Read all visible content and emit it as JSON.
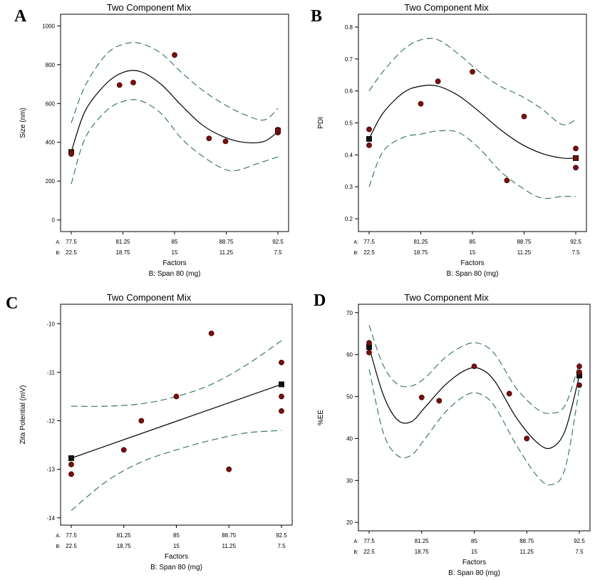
{
  "figure": {
    "marker_color": "#7a0f0f",
    "line_color": "#000000",
    "ci_color": "#3d7a6a"
  },
  "chart_data": [
    {
      "panel": "A",
      "type": "scatter",
      "title": "Two Component Mix",
      "ylabel": "Size (nm)",
      "xlabel": "Factors",
      "xlabel2": "B: Span 80 (mg)",
      "row_a_label": "A:",
      "row_b_label": "B:",
      "x_ticks_a": [
        "77.5",
        "81.25",
        "85",
        "88.75",
        "92.5"
      ],
      "x_ticks_b": [
        "22.5",
        "18.75",
        "15",
        "11.25",
        "7.5"
      ],
      "xlim": [
        77.5,
        92.5
      ],
      "ylim": [
        -60,
        1060
      ],
      "y_ticks": [
        0,
        200,
        400,
        600,
        800,
        1000
      ],
      "points": [
        [
          77.5,
          350
        ],
        [
          77.5,
          340
        ],
        [
          81.0,
          695
        ],
        [
          82.0,
          708
        ],
        [
          85.0,
          850
        ],
        [
          87.5,
          420
        ],
        [
          88.7,
          405
        ],
        [
          92.5,
          450
        ],
        [
          92.5,
          465
        ],
        [
          92.5,
          460
        ]
      ],
      "design_points": [
        [
          77.5,
          350
        ],
        [
          92.5,
          460
        ]
      ],
      "fit": [
        [
          77.5,
          350
        ],
        [
          78.5,
          560
        ],
        [
          80.0,
          700
        ],
        [
          81.25,
          760
        ],
        [
          82.5,
          765
        ],
        [
          84.0,
          700
        ],
        [
          85.5,
          590
        ],
        [
          87.0,
          490
        ],
        [
          88.5,
          430
        ],
        [
          90.0,
          400
        ],
        [
          91.5,
          405
        ],
        [
          92.5,
          455
        ]
      ],
      "ci_upper": [
        [
          77.5,
          500
        ],
        [
          78.5,
          690
        ],
        [
          80.0,
          850
        ],
        [
          81.25,
          905
        ],
        [
          82.5,
          910
        ],
        [
          84.0,
          860
        ],
        [
          85.5,
          760
        ],
        [
          87.0,
          670
        ],
        [
          88.5,
          600
        ],
        [
          90.0,
          545
        ],
        [
          91.5,
          515
        ],
        [
          92.5,
          575
        ]
      ],
      "ci_lower": [
        [
          77.5,
          185
        ],
        [
          78.5,
          420
        ],
        [
          80.0,
          560
        ],
        [
          81.25,
          610
        ],
        [
          82.5,
          615
        ],
        [
          84.0,
          550
        ],
        [
          85.5,
          420
        ],
        [
          87.0,
          330
        ],
        [
          88.5,
          265
        ],
        [
          89.5,
          255
        ],
        [
          91.0,
          290
        ],
        [
          92.5,
          325
        ]
      ]
    },
    {
      "panel": "B",
      "type": "scatter",
      "title": "Two Component Mix",
      "ylabel": "PDI",
      "xlabel": "Factors",
      "xlabel2": "B: Span 80 (mg)",
      "row_a_label": "A:",
      "row_b_label": "B:",
      "x_ticks_a": [
        "77.5",
        "81.25",
        "85",
        "88.75",
        "92.5"
      ],
      "x_ticks_b": [
        "22.5",
        "18.75",
        "15",
        "11.25",
        "7.5"
      ],
      "xlim": [
        77.5,
        92.5
      ],
      "ylim": [
        0.16,
        0.84
      ],
      "y_ticks": [
        0.2,
        0.3,
        0.4,
        0.5,
        0.6,
        0.7,
        0.8
      ],
      "points": [
        [
          77.5,
          0.48
        ],
        [
          77.5,
          0.43
        ],
        [
          81.25,
          0.56
        ],
        [
          82.5,
          0.63
        ],
        [
          85.0,
          0.66
        ],
        [
          87.5,
          0.32
        ],
        [
          88.75,
          0.52
        ],
        [
          92.5,
          0.42
        ],
        [
          92.5,
          0.39
        ],
        [
          92.5,
          0.36
        ]
      ],
      "design_points": [
        [
          77.5,
          0.45
        ],
        [
          92.5,
          0.39
        ]
      ],
      "fit": [
        [
          77.5,
          0.45
        ],
        [
          78.5,
          0.53
        ],
        [
          80.0,
          0.595
        ],
        [
          81.25,
          0.615
        ],
        [
          82.5,
          0.615
        ],
        [
          84.0,
          0.585
        ],
        [
          85.5,
          0.535
        ],
        [
          87.0,
          0.48
        ],
        [
          88.5,
          0.435
        ],
        [
          90.0,
          0.405
        ],
        [
          91.5,
          0.39
        ],
        [
          92.5,
          0.39
        ]
      ],
      "ci_upper": [
        [
          77.5,
          0.6
        ],
        [
          78.5,
          0.66
        ],
        [
          80.0,
          0.73
        ],
        [
          81.25,
          0.76
        ],
        [
          82.5,
          0.76
        ],
        [
          84.0,
          0.715
        ],
        [
          85.5,
          0.66
        ],
        [
          87.0,
          0.615
        ],
        [
          88.5,
          0.585
        ],
        [
          90.0,
          0.545
        ],
        [
          91.5,
          0.495
        ],
        [
          92.5,
          0.51
        ]
      ],
      "ci_lower": [
        [
          77.5,
          0.3
        ],
        [
          78.5,
          0.41
        ],
        [
          80.0,
          0.455
        ],
        [
          81.25,
          0.465
        ],
        [
          82.5,
          0.475
        ],
        [
          84.0,
          0.47
        ],
        [
          85.5,
          0.42
        ],
        [
          87.0,
          0.35
        ],
        [
          88.5,
          0.3
        ],
        [
          90.0,
          0.265
        ],
        [
          91.5,
          0.27
        ],
        [
          92.5,
          0.27
        ]
      ]
    },
    {
      "panel": "C",
      "type": "scatter",
      "title": "Two Component Mix",
      "ylabel": "Zita Potential (mV)",
      "xlabel": "Factors",
      "xlabel2": "B: Span 80 (mg)",
      "row_a_label": "A:",
      "row_b_label": "B:",
      "x_ticks_a": [
        "77.5",
        "81.25",
        "85",
        "88.75",
        "92.5"
      ],
      "x_ticks_b": [
        "22.5",
        "18.75",
        "15",
        "11.25",
        "7.5"
      ],
      "xlim": [
        77.5,
        92.5
      ],
      "ylim": [
        -14.15,
        -9.6
      ],
      "y_ticks": [
        -14,
        -13,
        -12,
        -11,
        -10
      ],
      "points": [
        [
          77.5,
          -12.9
        ],
        [
          77.5,
          -13.1
        ],
        [
          81.25,
          -12.6
        ],
        [
          82.5,
          -12.0
        ],
        [
          85.0,
          -11.5
        ],
        [
          87.5,
          -10.2
        ],
        [
          88.75,
          -13.0
        ],
        [
          92.5,
          -10.8
        ],
        [
          92.5,
          -11.5
        ],
        [
          92.5,
          -11.8
        ]
      ],
      "design_points": [
        [
          77.5,
          -12.77
        ],
        [
          92.5,
          -11.25
        ]
      ],
      "fit": [
        [
          77.5,
          -12.77
        ],
        [
          92.5,
          -11.25
        ]
      ],
      "ci_upper": [
        [
          77.5,
          -11.7
        ],
        [
          80.0,
          -11.7
        ],
        [
          82.5,
          -11.65
        ],
        [
          85.0,
          -11.5
        ],
        [
          87.5,
          -11.25
        ],
        [
          90.0,
          -10.85
        ],
        [
          92.5,
          -10.35
        ]
      ],
      "ci_lower": [
        [
          77.5,
          -13.85
        ],
        [
          80.0,
          -13.25
        ],
        [
          82.5,
          -12.85
        ],
        [
          85.0,
          -12.6
        ],
        [
          87.5,
          -12.4
        ],
        [
          90.0,
          -12.25
        ],
        [
          92.5,
          -12.2
        ]
      ]
    },
    {
      "panel": "D",
      "type": "scatter",
      "title": "Two Component Mix",
      "ylabel": "%EE",
      "xlabel": "Factors",
      "xlabel2": "B: Span 80 (mg)",
      "row_a_label": "A:",
      "row_b_label": "B:",
      "x_ticks_a": [
        "77.5",
        "81.25",
        "85",
        "88.75",
        "92.5"
      ],
      "x_ticks_b": [
        "22.5",
        "18.75",
        "15",
        "11.25",
        "7.5"
      ],
      "xlim": [
        77.5,
        92.5
      ],
      "ylim": [
        18,
        72
      ],
      "y_ticks": [
        20,
        30,
        40,
        50,
        60,
        70
      ],
      "points": [
        [
          77.5,
          62.8
        ],
        [
          77.5,
          60.5
        ],
        [
          81.25,
          49.8
        ],
        [
          82.5,
          49.0
        ],
        [
          85.0,
          57.2
        ],
        [
          87.5,
          50.7
        ],
        [
          88.75,
          40.0
        ],
        [
          92.5,
          57.2
        ],
        [
          92.5,
          55.8
        ],
        [
          92.5,
          52.7
        ]
      ],
      "design_points": [
        [
          77.5,
          61.8
        ],
        [
          92.5,
          55.0
        ]
      ],
      "fit": [
        [
          77.5,
          61.8
        ],
        [
          78.5,
          50.5
        ],
        [
          79.5,
          44.5
        ],
        [
          80.5,
          44.0
        ],
        [
          81.5,
          47.5
        ],
        [
          83.0,
          53.0
        ],
        [
          84.5,
          56.5
        ],
        [
          85.5,
          56.5
        ],
        [
          86.5,
          53.5
        ],
        [
          88.0,
          45.0
        ],
        [
          89.5,
          39.0
        ],
        [
          90.5,
          37.8
        ],
        [
          91.5,
          42.0
        ],
        [
          92.5,
          55.0
        ]
      ],
      "ci_upper": [
        [
          77.5,
          67.0
        ],
        [
          78.5,
          57.5
        ],
        [
          79.5,
          53.0
        ],
        [
          80.5,
          52.5
        ],
        [
          81.5,
          54.5
        ],
        [
          83.0,
          59.5
        ],
        [
          84.5,
          62.5
        ],
        [
          85.5,
          62.5
        ],
        [
          86.5,
          60.0
        ],
        [
          88.0,
          52.0
        ],
        [
          89.5,
          47.0
        ],
        [
          90.5,
          46.0
        ],
        [
          91.5,
          48.0
        ],
        [
          92.5,
          58.0
        ]
      ],
      "ci_lower": [
        [
          77.5,
          56.5
        ],
        [
          78.5,
          41.5
        ],
        [
          79.5,
          36.0
        ],
        [
          80.5,
          36.0
        ],
        [
          81.5,
          40.0
        ],
        [
          83.0,
          46.5
        ],
        [
          84.5,
          50.5
        ],
        [
          85.5,
          50.5
        ],
        [
          86.5,
          47.5
        ],
        [
          88.0,
          38.5
        ],
        [
          89.5,
          31.0
        ],
        [
          90.5,
          29.0
        ],
        [
          91.5,
          33.0
        ],
        [
          92.5,
          52.0
        ]
      ]
    }
  ]
}
